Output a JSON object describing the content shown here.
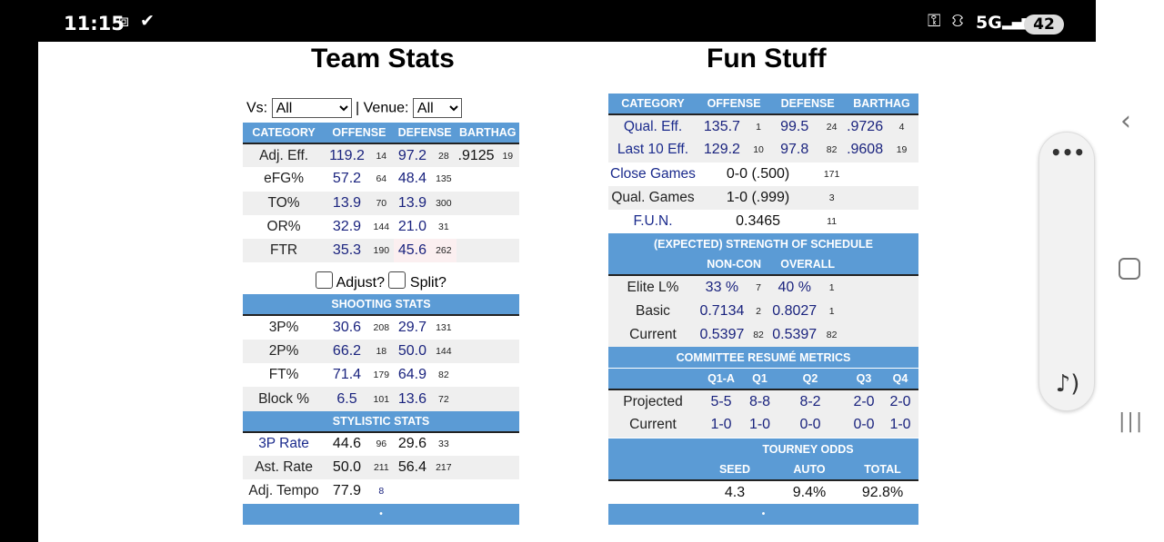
{
  "status": {
    "time": "11:15",
    "network": "5G",
    "battery": "42"
  },
  "team_stats": {
    "title": "Team Stats",
    "vs_label": "Vs:",
    "vs_value": "All",
    "venue_label": "| Venue:",
    "venue_value": "All",
    "headers": [
      "CATEGORY",
      "OFFENSE",
      "DEFENSE",
      "BARTHAG"
    ],
    "rows": [
      {
        "label": "Adj. Eff.",
        "off": "119.2",
        "off_rk": "14",
        "def": "97.2",
        "def_rk": "28",
        "bar": ".9125",
        "bar_rk": "19"
      },
      {
        "label": "eFG%",
        "off": "57.2",
        "off_rk": "64",
        "def": "48.4",
        "def_rk": "135"
      },
      {
        "label": "TO%",
        "off": "13.9",
        "off_rk": "70",
        "def": "13.9",
        "def_rk": "300"
      },
      {
        "label": "OR%",
        "off": "32.9",
        "off_rk": "144",
        "def": "21.0",
        "def_rk": "31"
      },
      {
        "label": "FTR",
        "off": "35.3",
        "off_rk": "190",
        "def": "45.6",
        "def_rk": "262"
      }
    ],
    "adjust_label": "Adjust?",
    "split_label": "Split?",
    "shooting_title": "SHOOTING STATS",
    "shooting": [
      {
        "label": "3P%",
        "off": "30.6",
        "off_rk": "208",
        "def": "29.7",
        "def_rk": "131"
      },
      {
        "label": "2P%",
        "off": "66.2",
        "off_rk": "18",
        "def": "50.0",
        "def_rk": "144"
      },
      {
        "label": "FT%",
        "off": "71.4",
        "off_rk": "179",
        "def": "64.9",
        "def_rk": "82"
      },
      {
        "label": "Block %",
        "off": "6.5",
        "off_rk": "101",
        "def": "13.6",
        "def_rk": "72"
      }
    ],
    "stylistic_title": "STYLISTIC STATS",
    "stylistic": [
      {
        "label": "3P Rate",
        "off": "44.6",
        "off_rk": "96",
        "def": "29.6",
        "def_rk": "33"
      },
      {
        "label": "Ast. Rate",
        "off": "50.0",
        "off_rk": "211",
        "def": "56.4",
        "def_rk": "217"
      },
      {
        "label": "Adj. Tempo",
        "off": "77.9",
        "off_rk": "8"
      }
    ],
    "footer": "•"
  },
  "fun_stuff": {
    "title": "Fun Stuff",
    "headers": [
      "CATEGORY",
      "OFFENSE",
      "DEFENSE",
      "BARTHAG"
    ],
    "rows": [
      {
        "label": "Qual. Eff.",
        "off": "135.7",
        "off_rk": "1",
        "def": "99.5",
        "def_rk": "24",
        "bar": ".9726",
        "bar_rk": "4"
      },
      {
        "label": "Last 10 Eff.",
        "off": "129.2",
        "off_rk": "10",
        "def": "97.8",
        "def_rk": "82",
        "bar": ".9608",
        "bar_rk": "19"
      }
    ],
    "misc": [
      {
        "label": "Close Games",
        "val": "0-0 (.500)",
        "rk": "171"
      },
      {
        "label": "Qual. Games",
        "val": "1-0 (.999)",
        "rk": "3"
      },
      {
        "label": "F.U.N.",
        "val": "0.3465",
        "rk": "11"
      }
    ],
    "sos_title": "(EXPECTED) STRENGTH OF SCHEDULE",
    "sos_headers": [
      "NON-CON",
      "OVERALL"
    ],
    "sos": [
      {
        "label": "Elite L%",
        "nc": "33 %",
        "nc_rk": "7",
        "ov": "40 %",
        "ov_rk": "1"
      },
      {
        "label": "Basic",
        "nc": "0.7134",
        "nc_rk": "2",
        "ov": "0.8027",
        "ov_rk": "1"
      },
      {
        "label": "Current",
        "nc": "0.5397",
        "nc_rk": "82",
        "ov": "0.5397",
        "ov_rk": "82"
      }
    ],
    "committee_title": "COMMITTEE RESUMÉ METRICS",
    "committee_headers": [
      "Q1-A",
      "Q1",
      "Q2",
      "Q3",
      "Q4"
    ],
    "committee": [
      {
        "label": "Projected",
        "vals": [
          "5-5",
          "8-8",
          "8-2",
          "2-0",
          "2-0"
        ]
      },
      {
        "label": "Current",
        "vals": [
          "1-0",
          "1-0",
          "0-0",
          "0-0",
          "1-0"
        ]
      }
    ],
    "tourney_title": "TOURNEY ODDS",
    "tourney_headers": [
      "SEED",
      "AUTO",
      "TOTAL"
    ],
    "tourney": [
      "4.3",
      "9.4%",
      "92.8%"
    ],
    "footer": "•"
  },
  "icons": [
    "screenshot-icon",
    "vpn-check-icon",
    "key-icon",
    "bed-icon",
    "signal-icon",
    "back-icon",
    "home-icon",
    "recents-icon",
    "more-icon",
    "sound-icon"
  ]
}
